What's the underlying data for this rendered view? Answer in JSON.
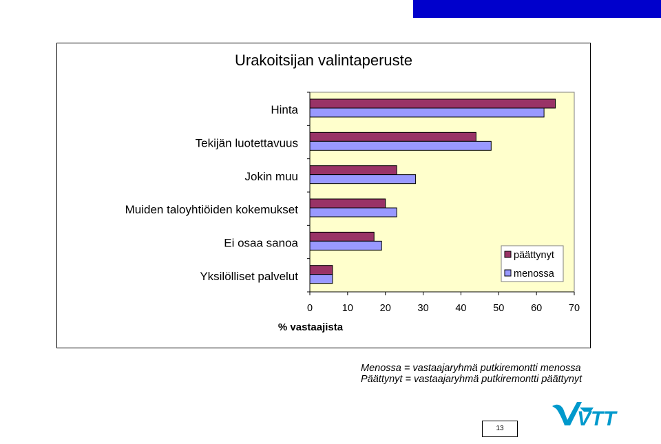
{
  "header_bar": {
    "colors": [
      "#ffffff",
      "#0000cc"
    ]
  },
  "chart_data": {
    "type": "bar",
    "orientation": "horizontal",
    "title": "Urakoitsijan valintaperuste",
    "xlabel": "% vastaajista",
    "ylabel": "",
    "xlim": [
      0,
      70
    ],
    "xticks": [
      0,
      10,
      20,
      30,
      40,
      50,
      60,
      70
    ],
    "categories": [
      "Hinta",
      "Tekijän luotettavuus",
      "Jokin muu",
      "Muiden taloyhtiöiden kokemukset",
      "Ei osaa sanoa",
      "Yksilölliset palvelut"
    ],
    "series": [
      {
        "name": "päättynyt",
        "values": [
          65,
          44,
          23,
          20,
          17,
          6
        ],
        "color": "#993366"
      },
      {
        "name": "menossa",
        "values": [
          62,
          48,
          28,
          23,
          19,
          6
        ],
        "color": "#9999ff"
      }
    ],
    "plot_background": "#ffffcc",
    "grid": false,
    "legend_position": "right"
  },
  "notes": {
    "line1": "Menossa = vastaajaryhmä putkiremontti menossa",
    "line2": "Päättynyt = vastaajaryhmä putkiremontti päättynyt"
  },
  "page_number": "13",
  "logo": {
    "icon": "vtt-logo-icon",
    "text": "VTT",
    "color": "#0099cc"
  }
}
